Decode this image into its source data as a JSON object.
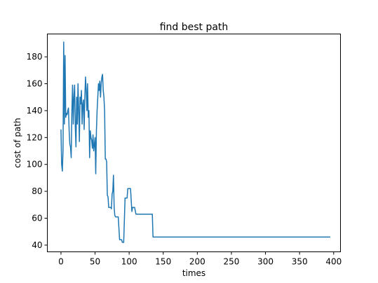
{
  "chart_data": {
    "type": "line",
    "title": "find best path",
    "xlabel": "times",
    "ylabel": "cost of path",
    "xlim": [
      -20,
      410
    ],
    "ylim": [
      35,
      197
    ],
    "xticks": [
      0,
      50,
      100,
      150,
      200,
      250,
      300,
      350,
      400
    ],
    "yticks": [
      40,
      60,
      80,
      100,
      120,
      140,
      160,
      180
    ],
    "grid": false,
    "series": [
      {
        "color": "#1f77b4",
        "x": [
          0,
          1,
          2,
          3,
          4,
          5,
          6,
          7,
          8,
          9,
          10,
          11,
          12,
          13,
          14,
          15,
          16,
          17,
          18,
          19,
          20,
          21,
          22,
          23,
          24,
          25,
          26,
          27,
          28,
          29,
          30,
          31,
          32,
          33,
          34,
          35,
          36,
          37,
          38,
          39,
          40,
          41,
          42,
          43,
          44,
          45,
          46,
          47,
          48,
          49,
          50,
          51,
          52,
          53,
          54,
          55,
          56,
          57,
          58,
          59,
          60,
          61,
          62,
          63,
          64,
          65,
          66,
          67,
          68,
          69,
          70,
          71,
          72,
          73,
          74,
          75,
          76,
          77,
          78,
          79,
          80,
          82,
          84,
          86,
          87,
          88,
          89,
          90,
          91,
          92,
          94,
          96,
          97,
          98,
          100,
          102,
          104,
          105,
          106,
          108,
          110,
          112,
          114,
          116,
          118,
          119,
          120,
          122,
          124,
          126,
          128,
          130,
          132,
          134,
          135,
          136,
          138,
          140,
          395
        ],
        "y": [
          126,
          100,
          95,
          110,
          191,
          130,
          181,
          135,
          138,
          137,
          140,
          142,
          125,
          115,
          113,
          105,
          140,
          159,
          130,
          150,
          159,
          128,
          113,
          150,
          130,
          160,
          140,
          117,
          150,
          145,
          155,
          130,
          145,
          148,
          126,
          150,
          165,
          155,
          140,
          160,
          135,
          140,
          105,
          125,
          120,
          118,
          112,
          122,
          110,
          115,
          120,
          93,
          125,
          140,
          150,
          160,
          155,
          162,
          150,
          160,
          165,
          167,
          155,
          150,
          140,
          104,
          104,
          102,
          77,
          76,
          68,
          68,
          68,
          68,
          67,
          78,
          80,
          92,
          68,
          62,
          61,
          61,
          61,
          44,
          44,
          44,
          44,
          42,
          42,
          42,
          75,
          75,
          75,
          82,
          82,
          82,
          65,
          68,
          68,
          68,
          63,
          63,
          63,
          63,
          63,
          63,
          63,
          63,
          63,
          63,
          63,
          63,
          63,
          63,
          46,
          46,
          46,
          46,
          46
        ]
      }
    ]
  }
}
